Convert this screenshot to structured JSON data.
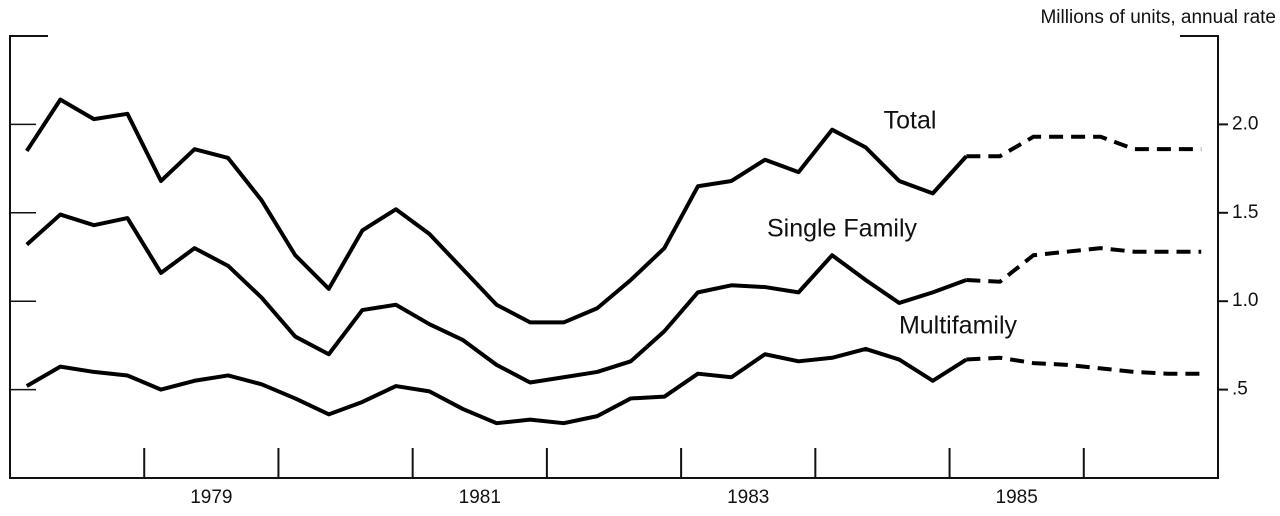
{
  "chart_data": {
    "type": "line",
    "axis_label": "Millions of units, annual rate",
    "x": [
      1978.125,
      1978.375,
      1978.625,
      1978.875,
      1979.125,
      1979.375,
      1979.625,
      1979.875,
      1980.125,
      1980.375,
      1980.625,
      1980.875,
      1981.125,
      1981.375,
      1981.625,
      1981.875,
      1982.125,
      1982.375,
      1982.625,
      1982.875,
      1983.125,
      1983.375,
      1983.625,
      1983.875,
      1984.125,
      1984.375,
      1984.625,
      1984.875,
      1985.125,
      1985.375,
      1985.625,
      1985.875,
      1986.125,
      1986.375,
      1986.625,
      1986.875
    ],
    "xlim": [
      1978,
      1987
    ],
    "xticks": [
      {
        "value": 1979.5,
        "label": "1979"
      },
      {
        "value": 1981.5,
        "label": "1981"
      },
      {
        "value": 1983.5,
        "label": "1983"
      },
      {
        "value": 1985.5,
        "label": "1985"
      }
    ],
    "xminor": [
      1979,
      1980,
      1981,
      1982,
      1983,
      1984,
      1985,
      1986
    ],
    "ylim": [
      0,
      2.5
    ],
    "yticks": [
      {
        "value": 0.5,
        "label": ".5"
      },
      {
        "value": 1.0,
        "label": "1.0"
      },
      {
        "value": 1.5,
        "label": "1.5"
      },
      {
        "value": 2.0,
        "label": "2.0"
      }
    ],
    "series": [
      {
        "name": "Total",
        "color": "#000000",
        "values": [
          1.85,
          2.14,
          2.03,
          2.06,
          1.68,
          1.86,
          1.81,
          1.57,
          1.26,
          1.07,
          1.4,
          1.52,
          1.38,
          1.18,
          0.98,
          0.88,
          0.88,
          0.96,
          1.12,
          1.3,
          1.65,
          1.68,
          1.8,
          1.73,
          1.97,
          1.87,
          1.68,
          1.61,
          1.82,
          null,
          null,
          null,
          null,
          null,
          null,
          null
        ],
        "forecast": [
          null,
          null,
          null,
          null,
          null,
          null,
          null,
          null,
          null,
          null,
          null,
          null,
          null,
          null,
          null,
          null,
          null,
          null,
          null,
          null,
          null,
          null,
          null,
          null,
          null,
          null,
          null,
          null,
          null,
          1.82,
          1.93,
          1.93,
          1.93,
          1.86,
          1.86,
          1.86
        ]
      },
      {
        "name": "Single Family",
        "color": "#000000",
        "values": [
          1.32,
          1.49,
          1.43,
          1.47,
          1.16,
          1.3,
          1.2,
          1.02,
          0.8,
          0.7,
          0.95,
          0.98,
          0.87,
          0.78,
          0.64,
          0.54,
          0.57,
          0.6,
          0.66,
          0.83,
          1.05,
          1.09,
          1.08,
          1.05,
          1.26,
          1.12,
          0.99,
          1.05,
          1.12,
          null,
          null,
          null,
          null,
          null,
          null,
          null
        ],
        "forecast": [
          null,
          null,
          null,
          null,
          null,
          null,
          null,
          null,
          null,
          null,
          null,
          null,
          null,
          null,
          null,
          null,
          null,
          null,
          null,
          null,
          null,
          null,
          null,
          null,
          null,
          null,
          null,
          null,
          null,
          1.11,
          1.26,
          1.28,
          1.3,
          1.28,
          1.28,
          1.28
        ]
      },
      {
        "name": "Multifamily",
        "color": "#000000",
        "values": [
          0.52,
          0.63,
          0.6,
          0.58,
          0.5,
          0.55,
          0.58,
          0.53,
          0.45,
          0.36,
          0.43,
          0.52,
          0.49,
          0.39,
          0.31,
          0.33,
          0.31,
          0.35,
          0.45,
          0.46,
          0.59,
          0.57,
          0.7,
          0.66,
          0.68,
          0.73,
          0.67,
          0.55,
          0.67,
          null,
          null,
          null,
          null,
          null,
          null,
          null
        ],
        "forecast": [
          null,
          null,
          null,
          null,
          null,
          null,
          null,
          null,
          null,
          null,
          null,
          null,
          null,
          null,
          null,
          null,
          null,
          null,
          null,
          null,
          null,
          null,
          null,
          null,
          null,
          null,
          null,
          null,
          null,
          0.68,
          0.65,
          0.64,
          0.62,
          0.6,
          0.59,
          0.59
        ]
      }
    ]
  }
}
